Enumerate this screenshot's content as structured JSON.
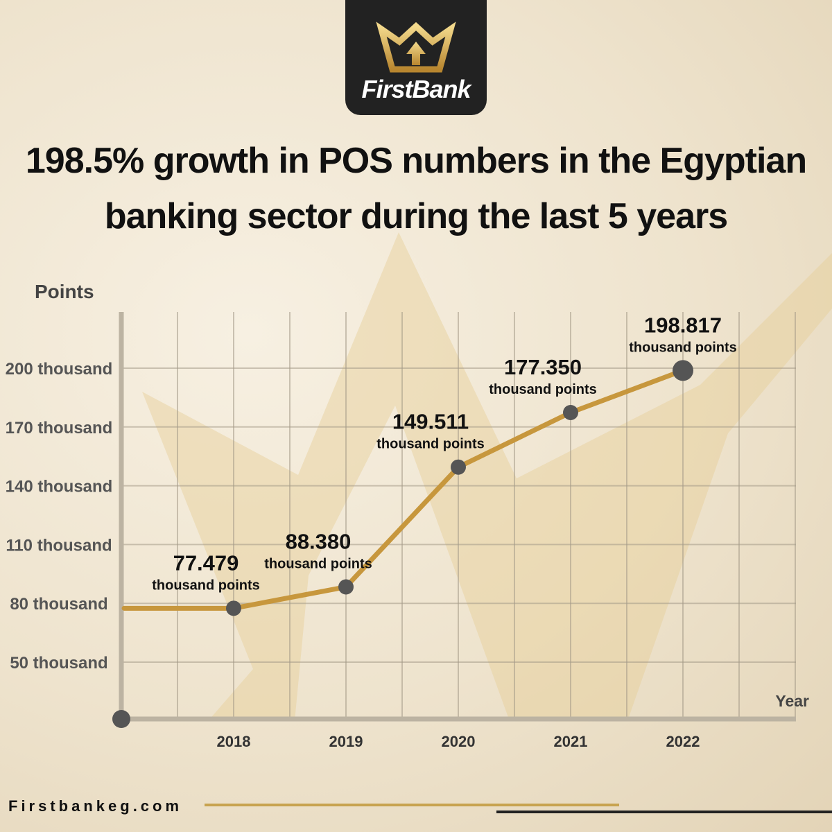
{
  "brand": {
    "name": "FirstBank",
    "website": "Firstbankeg.com",
    "accent": "#c7973d",
    "dark": "#222222"
  },
  "title": {
    "line1": "198.5% growth in POS numbers in the Egyptian",
    "line2": "banking sector during the last 5 years"
  },
  "chart_data": {
    "type": "line",
    "ylabel": "Points",
    "xlabel": "Year",
    "categories": [
      "2018",
      "2019",
      "2020",
      "2021",
      "2022"
    ],
    "y_ticks": [
      {
        "value": 50,
        "label": "50 thousand"
      },
      {
        "value": 80,
        "label": "80 thousand"
      },
      {
        "value": 110,
        "label": "110 thousand"
      },
      {
        "value": 140,
        "label": "140 thousand"
      },
      {
        "value": 170,
        "label": "170 thousand"
      },
      {
        "value": 200,
        "label": "200 thousand"
      }
    ],
    "series": [
      {
        "values": [
          77.479,
          88.38,
          149.511,
          177.35,
          198.817
        ],
        "labels": [
          {
            "value": "77.479",
            "unit": "thousand points"
          },
          {
            "value": "88.380",
            "unit": "thousand points"
          },
          {
            "value": "149.511",
            "unit": "thousand points"
          },
          {
            "value": "177.350",
            "unit": "thousand points"
          },
          {
            "value": "198.817",
            "unit": "thousand points"
          }
        ]
      }
    ],
    "line_color": "#c7973d",
    "marker_color": "#555555",
    "grid": true
  }
}
